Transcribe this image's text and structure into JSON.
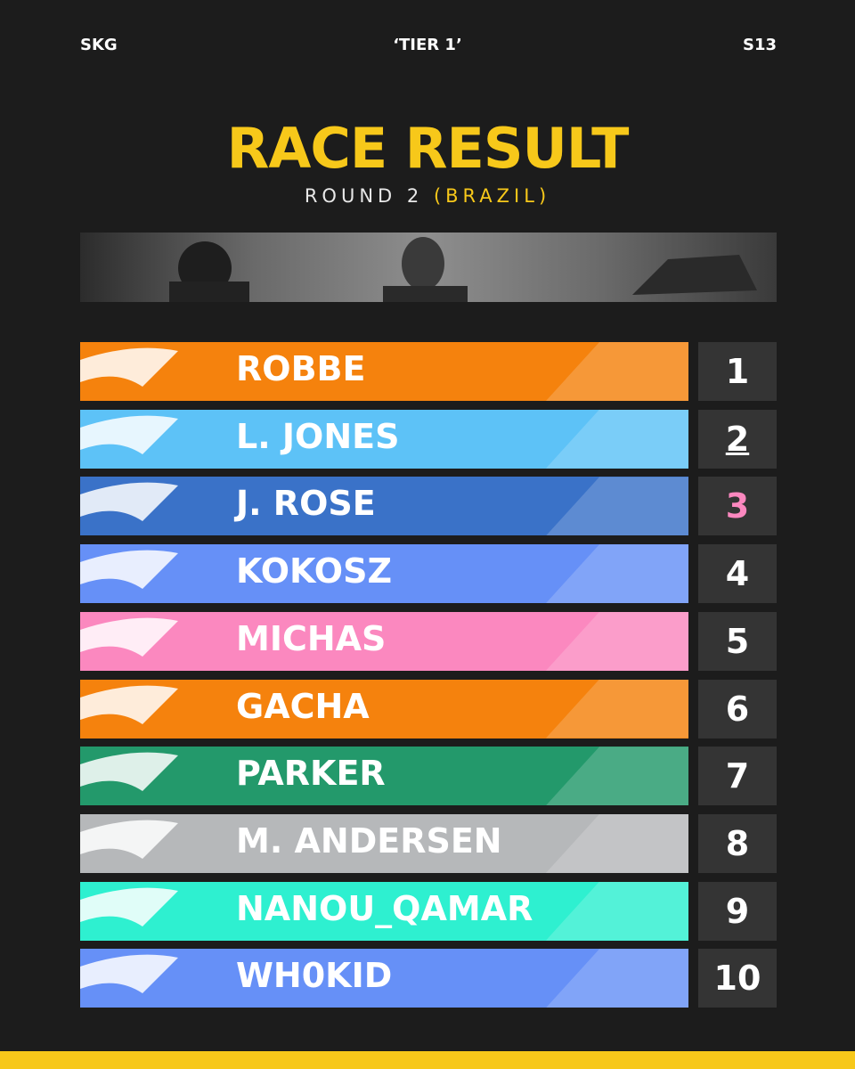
{
  "header": {
    "left": "SKG",
    "center": "‘TIER 1’",
    "right": "S13"
  },
  "title": "RACE RESULT",
  "subtitle": {
    "round": "ROUND 2",
    "location": "(BRAZIL)"
  },
  "results": [
    {
      "name": "ROBBE",
      "position": "1",
      "color": "#f5820d"
    },
    {
      "name": "L. JONES",
      "position": "2",
      "color": "#5dc2f7"
    },
    {
      "name": "J. ROSE",
      "position": "3",
      "color": "#3a72c8"
    },
    {
      "name": "KOKOSZ",
      "position": "4",
      "color": "#6690f7"
    },
    {
      "name": "MICHAS",
      "position": "5",
      "color": "#fb88bf"
    },
    {
      "name": "GACHA",
      "position": "6",
      "color": "#f5820d"
    },
    {
      "name": "PARKER",
      "position": "7",
      "color": "#23996b"
    },
    {
      "name": "M. ANDERSEN",
      "position": "8",
      "color": "#b6b8ba"
    },
    {
      "name": "NANOU_QAMAR",
      "position": "9",
      "color": "#2ef0d0"
    },
    {
      "name": "WH0KID",
      "position": "10",
      "color": "#6690f7"
    }
  ]
}
